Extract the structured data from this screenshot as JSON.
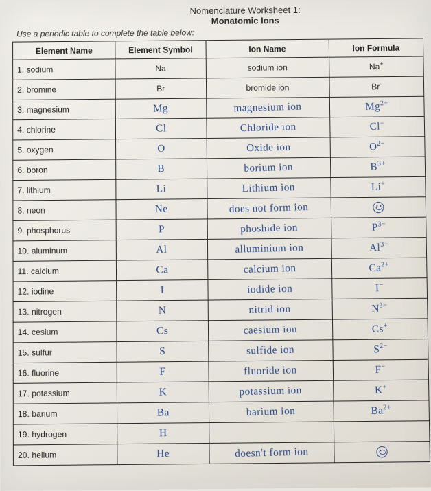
{
  "title_line1": "Nomenclature Worksheet 1:",
  "title_line2": "Monatomic Ions",
  "instruction": "Use a periodic table to complete the table below:",
  "headers": {
    "name": "Element Name",
    "symbol": "Element Symbol",
    "ion": "Ion Name",
    "formula": "Ion Formula"
  },
  "rows": [
    {
      "num": "1.",
      "name": "sodium",
      "symbol": "Na",
      "symbol_hand": false,
      "ion": "sodium ion",
      "ion_hand": false,
      "formula": "Na",
      "formula_sup": "+",
      "formula_hand": false
    },
    {
      "num": "2.",
      "name": "bromine",
      "symbol": "Br",
      "symbol_hand": false,
      "ion": "bromide ion",
      "ion_hand": false,
      "formula": "Br",
      "formula_sup": "-",
      "formula_hand": false
    },
    {
      "num": "3.",
      "name": "magnesium",
      "symbol": "Mg",
      "symbol_hand": true,
      "ion": "magnesium ion",
      "ion_hand": true,
      "formula": "Mg",
      "formula_sup": "2+",
      "formula_hand": true
    },
    {
      "num": "4.",
      "name": "chlorine",
      "symbol": "Cl",
      "symbol_hand": true,
      "ion": "Chloride ion",
      "ion_hand": true,
      "formula": "Cl",
      "formula_sup": "−",
      "formula_hand": true
    },
    {
      "num": "5.",
      "name": "oxygen",
      "symbol": "O",
      "symbol_hand": true,
      "ion": "Oxide ion",
      "ion_hand": true,
      "formula": "O",
      "formula_sup": "2−",
      "formula_hand": true
    },
    {
      "num": "6.",
      "name": "boron",
      "symbol": "B",
      "symbol_hand": true,
      "ion": "borium ion",
      "ion_hand": true,
      "formula": "B",
      "formula_sup": "3+",
      "formula_hand": true
    },
    {
      "num": "7.",
      "name": "lithium",
      "symbol": "Li",
      "symbol_hand": true,
      "ion": "Lithium ion",
      "ion_hand": true,
      "formula": "Li",
      "formula_sup": "+",
      "formula_hand": true
    },
    {
      "num": "8.",
      "name": "neon",
      "symbol": "Ne",
      "symbol_hand": true,
      "ion": "does not form ion",
      "ion_hand": true,
      "formula": "",
      "formula_sup": "",
      "formula_hand": true,
      "smiley": true
    },
    {
      "num": "9.",
      "name": "phosphorus",
      "symbol": "P",
      "symbol_hand": true,
      "ion": "phoshide ion",
      "ion_hand": true,
      "formula": "P",
      "formula_sup": "3−",
      "formula_hand": true
    },
    {
      "num": "10.",
      "name": "aluminum",
      "symbol": "Al",
      "symbol_hand": true,
      "ion": "alluminium ion",
      "ion_hand": true,
      "formula": "Al",
      "formula_sup": "3+",
      "formula_hand": true
    },
    {
      "num": "11.",
      "name": "calcium",
      "symbol": "Ca",
      "symbol_hand": true,
      "ion": "calcium ion",
      "ion_hand": true,
      "formula": "Ca",
      "formula_sup": "2+",
      "formula_hand": true
    },
    {
      "num": "12.",
      "name": "iodine",
      "symbol": "I",
      "symbol_hand": true,
      "ion": "iodide ion",
      "ion_hand": true,
      "formula": "I",
      "formula_sup": "−",
      "formula_hand": true
    },
    {
      "num": "13.",
      "name": "nitrogen",
      "symbol": "N",
      "symbol_hand": true,
      "ion": "nitrid ion",
      "ion_hand": true,
      "formula": "N",
      "formula_sup": "3−",
      "formula_hand": true
    },
    {
      "num": "14.",
      "name": "cesium",
      "symbol": "Cs",
      "symbol_hand": true,
      "ion": "caesium ion",
      "ion_hand": true,
      "formula": "Cs",
      "formula_sup": "+",
      "formula_hand": true
    },
    {
      "num": "15.",
      "name": "sulfur",
      "symbol": "S",
      "symbol_hand": true,
      "ion": "sulfide ion",
      "ion_hand": true,
      "formula": "S",
      "formula_sup": "2−",
      "formula_hand": true
    },
    {
      "num": "16.",
      "name": "fluorine",
      "symbol": "F",
      "symbol_hand": true,
      "ion": "fluoride ion",
      "ion_hand": true,
      "formula": "F",
      "formula_sup": "−",
      "formula_hand": true
    },
    {
      "num": "17.",
      "name": "potassium",
      "symbol": "K",
      "symbol_hand": true,
      "ion": "potassium ion",
      "ion_hand": true,
      "formula": "K",
      "formula_sup": "+",
      "formula_hand": true
    },
    {
      "num": "18.",
      "name": "barium",
      "symbol": "Ba",
      "symbol_hand": true,
      "ion": "barium ion",
      "ion_hand": true,
      "formula": "Ba",
      "formula_sup": "2+",
      "formula_hand": true
    },
    {
      "num": "19.",
      "name": "hydrogen",
      "symbol": "H",
      "symbol_hand": true,
      "ion": "",
      "ion_hand": true,
      "formula": "",
      "formula_sup": "",
      "formula_hand": true
    },
    {
      "num": "20.",
      "name": "helium",
      "symbol": "He",
      "symbol_hand": true,
      "ion": "doesn't form ion",
      "ion_hand": true,
      "formula": "",
      "formula_sup": "",
      "formula_hand": true,
      "smiley": true
    }
  ],
  "colors": {
    "handwriting": "#2d4a8a",
    "print": "#262626",
    "border": "#2b2b2b",
    "paper_light": "#f4f2ec",
    "paper_dark": "#ddd9d0"
  }
}
